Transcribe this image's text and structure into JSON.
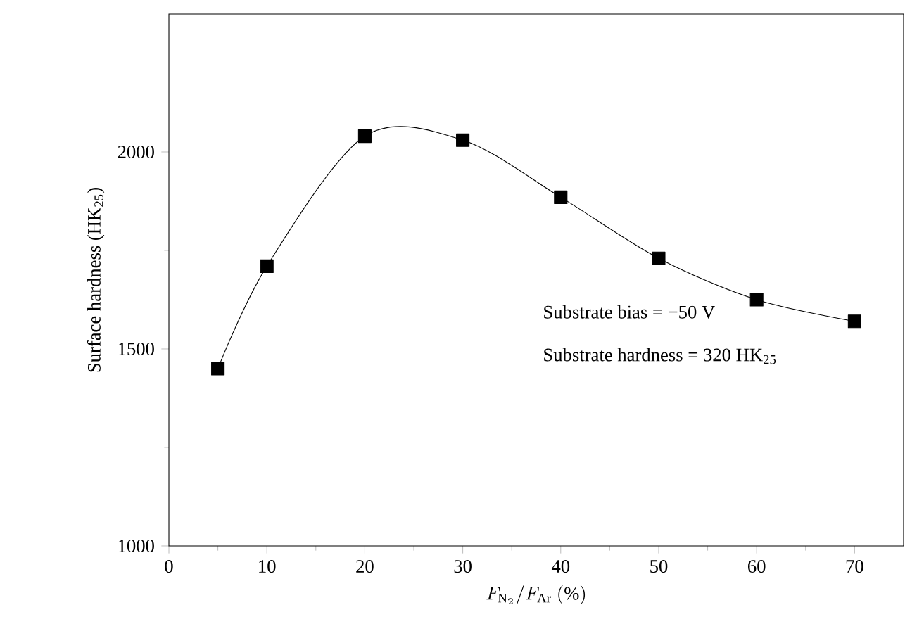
{
  "chart_data": {
    "type": "line",
    "xlabel": "F_{\\mathrm{N}_2}/F_{\\mathrm{Ar}}\\ (\\%)",
    "ylabel": "Surface hardness (HK$_{25}$)",
    "x": [
      5,
      10,
      20,
      30,
      40,
      50,
      60,
      70
    ],
    "series": [
      {
        "color": "#000000",
        "values": [
          1450,
          1710,
          2040,
          2030,
          1885,
          1730,
          1625,
          1570
        ]
      }
    ],
    "marker": "square",
    "line_style": "solid",
    "xlim": [
      0,
      75
    ],
    "ylim": [
      1000,
      2350
    ],
    "xticks": [
      0,
      10,
      20,
      30,
      40,
      50,
      60,
      70
    ],
    "yticks": [
      1000,
      1500,
      2000
    ],
    "annotations": [
      "Substrate bias = −50 V",
      "Substrate hardness = 320 HK$_{25}$"
    ]
  }
}
